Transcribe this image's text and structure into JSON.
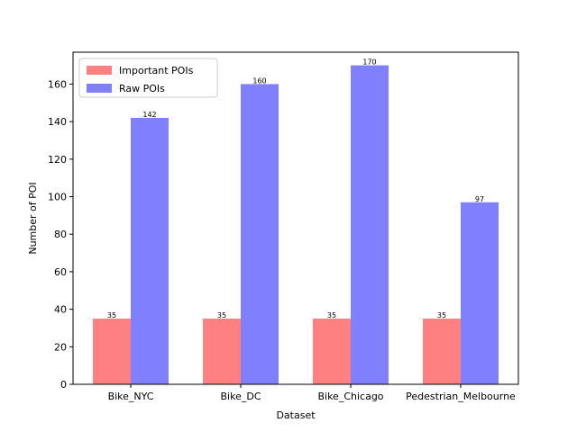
{
  "chart_data": {
    "type": "bar",
    "xlabel": "Dataset",
    "ylabel": "Number of POI",
    "ylim": [
      0,
      177
    ],
    "yticks": [
      0,
      20,
      40,
      60,
      80,
      100,
      120,
      140,
      160
    ],
    "categories": [
      "Bike_NYC",
      "Bike_DC",
      "Bike_Chicago",
      "Pedestrian_Melbourne"
    ],
    "series": [
      {
        "name": "Important POIs",
        "values": [
          35,
          35,
          35,
          35
        ],
        "color": "#ff8080"
      },
      {
        "name": "Raw POIs",
        "values": [
          142,
          160,
          170,
          97
        ],
        "color": "#8080ff"
      }
    ],
    "legend_position": "top-left",
    "grid": false
  }
}
